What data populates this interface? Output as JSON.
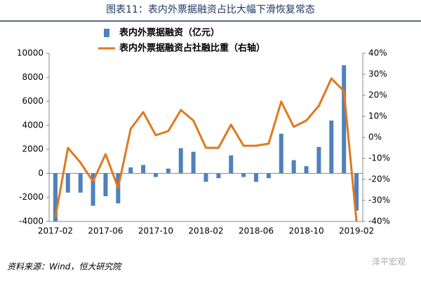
{
  "chart_data": {
    "type": "combo",
    "title": "图表11：表内外票据融资占比大幅下滑恢复常态",
    "source": "资料来源：Wind，恒大研究院",
    "watermark": "泽平宏观",
    "categories": [
      "2017-02",
      null,
      null,
      null,
      "2017-06",
      null,
      null,
      null,
      "2017-10",
      null,
      null,
      null,
      "2018-02",
      null,
      null,
      null,
      "2018-06",
      null,
      null,
      null,
      "2018-10",
      null,
      null,
      null,
      "2019-02"
    ],
    "series": [
      {
        "name": "表内外票据融资（亿元）",
        "type": "bar",
        "color": "#4f81bd",
        "values": [
          -4000,
          -1600,
          -1600,
          -2700,
          -1900,
          -2500,
          500,
          700,
          -300,
          400,
          2100,
          1800,
          -700,
          -400,
          1500,
          -300,
          -700,
          -400,
          3300,
          1100,
          600,
          2200,
          4400,
          9000,
          -3100
        ]
      },
      {
        "name": "表内外票据融资占社融比重（右轴）",
        "type": "line",
        "axis": "y2",
        "color": "#e0781e",
        "values": [
          -38,
          -5,
          -12,
          -21,
          -8,
          -24,
          4,
          12,
          1,
          3,
          13,
          8,
          -5,
          -5,
          6,
          -4,
          -4,
          -3,
          17,
          5,
          8,
          15,
          28,
          22,
          -40
        ]
      }
    ],
    "ylim": [
      -4000,
      10000
    ],
    "yticks": [
      -4000,
      -2000,
      0,
      2000,
      4000,
      6000,
      8000,
      10000
    ],
    "y2lim": [
      -40,
      40
    ],
    "y2ticks": [
      {
        "value": -40,
        "label": "-40%"
      },
      {
        "value": -30,
        "label": "-30%"
      },
      {
        "value": -20,
        "label": "-20%"
      },
      {
        "value": -10,
        "label": "-10%"
      },
      {
        "value": 0,
        "label": "0%"
      },
      {
        "value": 10,
        "label": "10%"
      },
      {
        "value": 20,
        "label": "20%"
      },
      {
        "value": 30,
        "label": "30%"
      },
      {
        "value": 40,
        "label": "40%"
      }
    ]
  }
}
